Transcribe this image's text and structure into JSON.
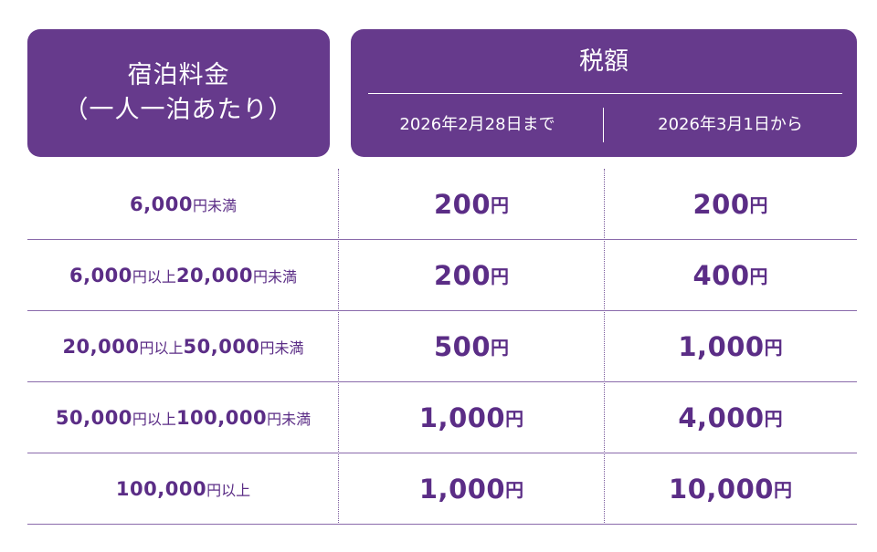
{
  "header": {
    "rate_title_line1": "宿泊料金",
    "rate_title_line2": "（一人一泊あたり）",
    "tax_title": "税額",
    "period1": "2026年2月28日まで",
    "period2": "2026年3月1日から"
  },
  "rows": [
    {
      "range": [
        "6,000",
        "円未満"
      ],
      "tax1": "200",
      "tax2": "200"
    },
    {
      "range": [
        "6,000",
        "円以上",
        "20,000",
        "円未満"
      ],
      "tax1": "200",
      "tax2": "400"
    },
    {
      "range": [
        "20,000",
        "円以上",
        "50,000",
        "円未満"
      ],
      "tax1": "500",
      "tax2": "1,000"
    },
    {
      "range": [
        "50,000",
        "円以上",
        "100,000",
        "円未満"
      ],
      "tax1": "1,000",
      "tax2": "4,000"
    },
    {
      "range": [
        "100,000",
        "円以上"
      ],
      "tax1": "1,000",
      "tax2": "10,000"
    }
  ],
  "unit": "円",
  "colors": {
    "header_bg": "#663a8c",
    "text": "#5b2d86",
    "rule": "#8a6aab"
  }
}
